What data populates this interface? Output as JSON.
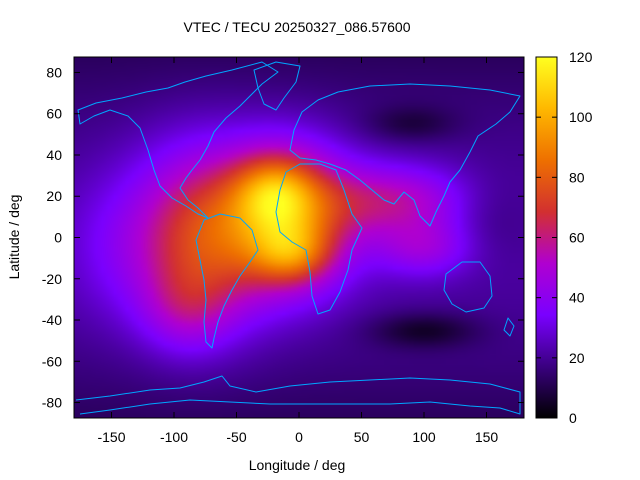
{
  "chart_data": {
    "type": "heatmap",
    "title": "VTEC / TECU 20250327_086.57600",
    "xlabel": "Longitude / deg",
    "ylabel": "Latitude / deg",
    "xlim": [
      -180,
      180
    ],
    "ylim": [
      -87.5,
      87.5
    ],
    "x_ticks": [
      -150,
      -100,
      -50,
      0,
      50,
      100,
      150
    ],
    "y_ticks": [
      -80,
      -60,
      -40,
      -20,
      0,
      20,
      40,
      60,
      80
    ],
    "colorbar": {
      "range": [
        0,
        120
      ],
      "ticks": [
        0,
        20,
        40,
        60,
        80,
        100,
        120
      ],
      "palette": [
        "#000000",
        "#3a0080",
        "#7a00ff",
        "#b000d0",
        "#d23030",
        "#ee7000",
        "#ffb800",
        "#ffff20"
      ]
    },
    "grid": false,
    "background_level": 22,
    "components": [
      {
        "lon": -80,
        "lat": 0,
        "amp": 48,
        "sx": 38,
        "sy": 30
      },
      {
        "lon": -10,
        "lat": 10,
        "amp": 62,
        "sx": 36,
        "sy": 24
      },
      {
        "lon": -20,
        "lat": 22,
        "amp": 30,
        "sx": 22,
        "sy": 12
      },
      {
        "lon": -5,
        "lat": -8,
        "amp": 28,
        "sx": 22,
        "sy": 10
      },
      {
        "lon": 75,
        "lat": 18,
        "amp": 32,
        "sx": 42,
        "sy": 12
      },
      {
        "lon": 100,
        "lat": -5,
        "amp": 22,
        "sx": 28,
        "sy": 10
      },
      {
        "lon": -90,
        "lat": -35,
        "amp": 16,
        "sx": 25,
        "sy": 15
      },
      {
        "lon": -150,
        "lat": -5,
        "amp": 8,
        "sx": 30,
        "sy": 25
      },
      {
        "lon": 100,
        "lat": -45,
        "amp": -14,
        "sx": 30,
        "sy": 6
      },
      {
        "lon": 90,
        "lat": 55,
        "amp": -10,
        "sx": 25,
        "sy": 6
      },
      {
        "lon": 150,
        "lat": 10,
        "amp": -6,
        "sx": 25,
        "sy": 15
      }
    ]
  }
}
